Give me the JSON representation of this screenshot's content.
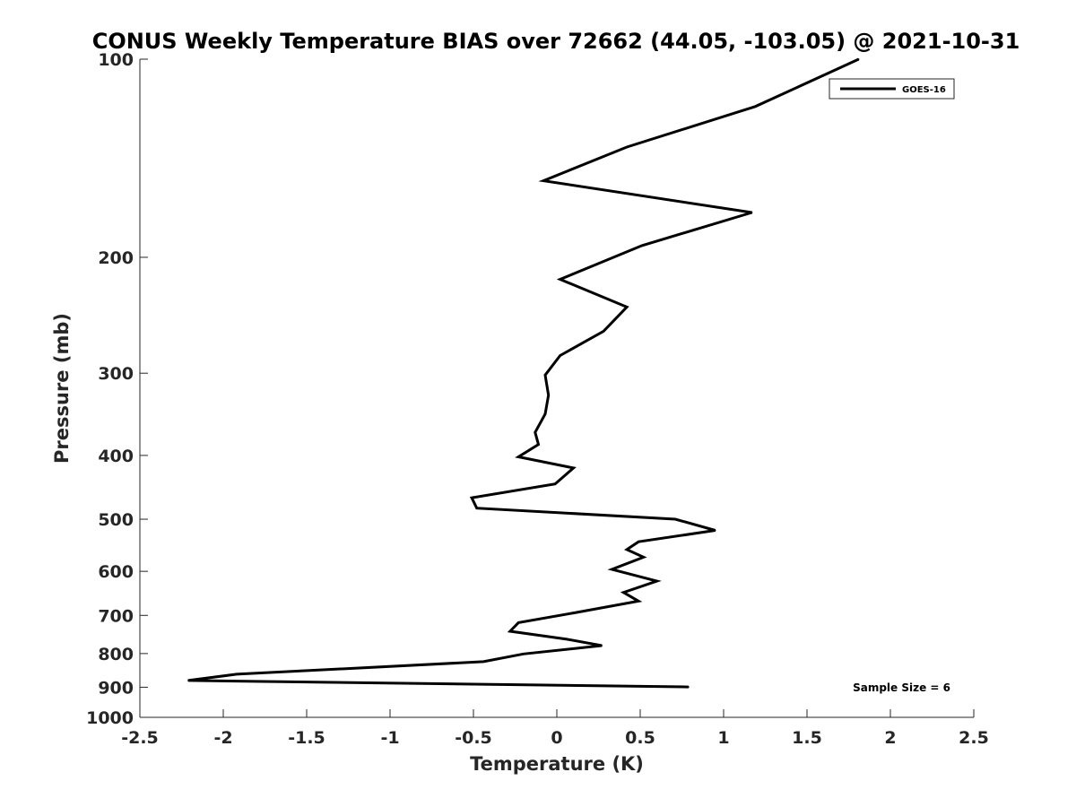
{
  "chart_data": {
    "type": "line",
    "title": "CONUS Weekly Temperature BIAS over 72662 (44.05, -103.05) @ 2021-10-31",
    "xlabel": "Temperature (K)",
    "ylabel": "Pressure (mb)",
    "xlim": [
      -2.5,
      2.5
    ],
    "ylim": [
      1000,
      100
    ],
    "yscale": "log",
    "grid": false,
    "legend_position": "top-right",
    "xticks": [
      -2.5,
      -2,
      -1.5,
      -1,
      -0.5,
      0,
      0.5,
      1,
      1.5,
      2,
      2.5
    ],
    "xtick_labels": [
      "-2.5",
      "-2",
      "-1.5",
      "-1",
      "-0.5",
      "0",
      "0.5",
      "1",
      "1.5",
      "2",
      "2.5"
    ],
    "yticks": [
      100,
      200,
      300,
      400,
      500,
      600,
      700,
      800,
      900,
      1000
    ],
    "ytick_labels": [
      "100",
      "200",
      "300",
      "400",
      "500",
      "600",
      "700",
      "800",
      "900",
      "1000"
    ],
    "series": [
      {
        "name": "GOES-16",
        "color": "#000000",
        "points": [
          [
            1.81,
            100
          ],
          [
            1.19,
            118
          ],
          [
            0.42,
            136
          ],
          [
            -0.08,
            153
          ],
          [
            1.17,
            171
          ],
          [
            0.51,
            192
          ],
          [
            0.02,
            216
          ],
          [
            0.42,
            238
          ],
          [
            0.28,
            259
          ],
          [
            0.02,
            282
          ],
          [
            -0.07,
            302
          ],
          [
            -0.05,
            324
          ],
          [
            -0.07,
            346
          ],
          [
            -0.13,
            369
          ],
          [
            -0.11,
            385
          ],
          [
            -0.23,
            402
          ],
          [
            0.1,
            418
          ],
          [
            -0.01,
            442
          ],
          [
            -0.51,
            464
          ],
          [
            -0.48,
            481
          ],
          [
            0.71,
            500
          ],
          [
            0.95,
            520
          ],
          [
            0.49,
            541
          ],
          [
            0.42,
            556
          ],
          [
            0.52,
            571
          ],
          [
            0.33,
            596
          ],
          [
            0.6,
            621
          ],
          [
            0.4,
            646
          ],
          [
            0.49,
            666
          ],
          [
            0.1,
            694
          ],
          [
            -0.23,
            718
          ],
          [
            -0.28,
            740
          ],
          [
            0.06,
            761
          ],
          [
            0.27,
            778
          ],
          [
            -0.2,
            801
          ],
          [
            -0.44,
            823
          ],
          [
            -1.92,
            860
          ],
          [
            -2.21,
            879
          ],
          [
            0.79,
            899
          ]
        ]
      }
    ],
    "annotations": [
      {
        "text": "Sample Size = 6",
        "position": "bottom-right"
      }
    ]
  }
}
